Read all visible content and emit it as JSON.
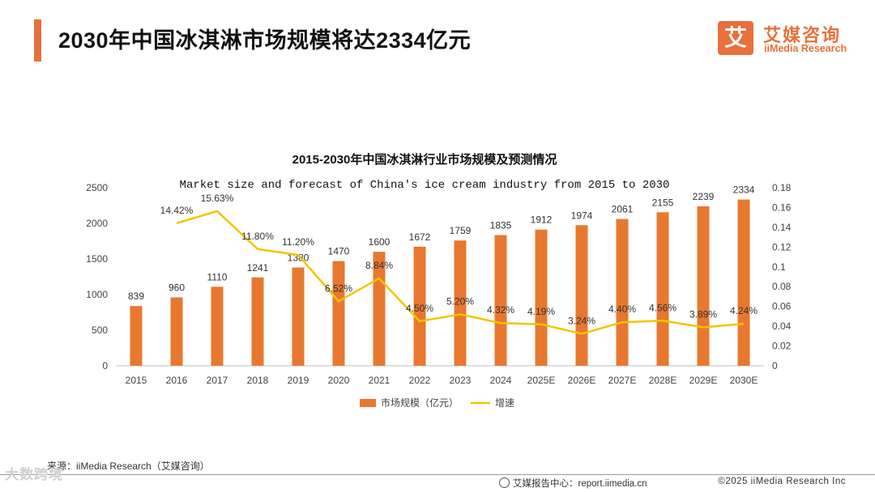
{
  "header": {
    "title": "2030年中国冰淇淋市场规模将达2334亿元",
    "brand_mark": "艾",
    "brand_cn": "艾媒咨询",
    "brand_en": "iiMedia Research",
    "accent_color": "#e8703a"
  },
  "chart_data": {
    "type": "bar",
    "title": "2015-2030年中国冰淇淋行业市场规模及预测情况",
    "subtitle": "Market size and forecast of China's ice cream industry from 2015 to 2030",
    "categories": [
      "2015",
      "2016",
      "2017",
      "2018",
      "2019",
      "2020",
      "2021",
      "2022",
      "2023",
      "2024",
      "2025E",
      "2026E",
      "2027E",
      "2028E",
      "2029E",
      "2030E"
    ],
    "series": [
      {
        "name": "市场规模（亿元）",
        "type": "bar",
        "axis": "left",
        "color": "#e8782f",
        "values": [
          839,
          960,
          1110,
          1241,
          1380,
          1470,
          1600,
          1672,
          1759,
          1835,
          1912,
          1974,
          2061,
          2155,
          2239,
          2334
        ],
        "labels": [
          "839",
          "960",
          "1110",
          "1241",
          "1380",
          "1470",
          "1600",
          "1672",
          "1759",
          "1835",
          "1912",
          "1974",
          "2061",
          "2155",
          "2239",
          "2334"
        ]
      },
      {
        "name": "增速",
        "type": "line",
        "axis": "right",
        "color": "#f2c500",
        "values": [
          null,
          0.1442,
          0.1563,
          0.118,
          0.112,
          0.0652,
          0.0884,
          0.045,
          0.052,
          0.0432,
          0.0419,
          0.0324,
          0.044,
          0.0456,
          0.0389,
          0.0424
        ],
        "labels": [
          "",
          "14.42%",
          "15.63%",
          "11.80%",
          "11.20%",
          "6.52%",
          "8.84%",
          "4.50%",
          "5.20%",
          "4.32%",
          "4.19%",
          "3.24%",
          "4.40%",
          "4.56%",
          "3.89%",
          "4.24%"
        ]
      }
    ],
    "y_left": {
      "min": 0,
      "max": 2500,
      "ticks": [
        "0",
        "500",
        "1000",
        "1500",
        "2000",
        "2500"
      ]
    },
    "y_right": {
      "min": 0,
      "max": 0.18,
      "ticks": [
        "0",
        "0.02",
        "0.04",
        "0.06",
        "0.08",
        "0.1",
        "0.12",
        "0.14",
        "0.16",
        "0.18"
      ]
    },
    "legend": {
      "position": "bottom",
      "bar_label": "市场规模（亿元）",
      "line_label": "增速"
    },
    "grid": false
  },
  "footer": {
    "source": "来源：iiMedia Research（艾媒咨询）",
    "report_center": "艾媒报告中心：report.iimedia.cn",
    "copyright": "©2025  iiMedia Research  Inc",
    "watermark": "大数跨境"
  }
}
